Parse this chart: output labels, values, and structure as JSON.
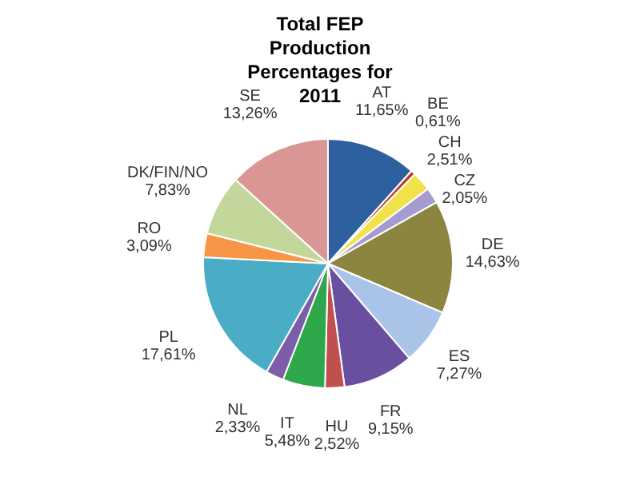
{
  "chart_data": {
    "type": "pie",
    "title": "Total FEP Production Percentages for 2011",
    "categories": [
      "AT",
      "BE",
      "CH",
      "CZ",
      "DE",
      "ES",
      "FR",
      "HU",
      "IT",
      "NL",
      "PL",
      "RO",
      "DK/FIN/NO",
      "SE"
    ],
    "values": [
      11.65,
      0.61,
      2.51,
      2.05,
      14.63,
      7.27,
      9.15,
      2.52,
      5.48,
      2.33,
      17.61,
      3.09,
      7.83,
      13.26
    ],
    "value_labels": [
      "11,65%",
      "0,61%",
      "2,51%",
      "2,05%",
      "14,63%",
      "7,27%",
      "9,15%",
      "2,52%",
      "5,48%",
      "2,33%",
      "17,61%",
      "3,09%",
      "7,83%",
      "13,26%"
    ],
    "colors": [
      "#2e5f9e",
      "#c0392b",
      "#f2e24a",
      "#a59bd0",
      "#8b8540",
      "#a9c4e8",
      "#6a4fa0",
      "#c0504d",
      "#2ea84a",
      "#7b5ea7",
      "#4bacc6",
      "#f79646",
      "#c4d79b",
      "#d99694"
    ],
    "legend": false
  }
}
